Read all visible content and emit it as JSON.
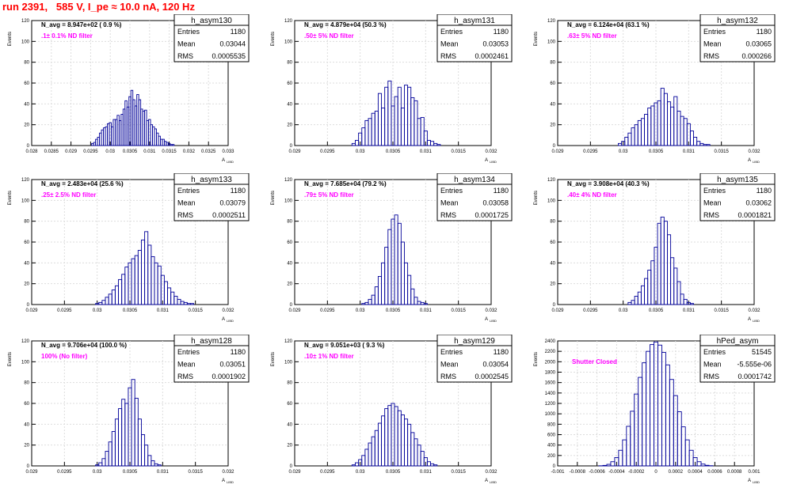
{
  "page_title": "run 2391,   585 V, I_pe ≈ 10.0 nA, 120 Hz",
  "colors": {
    "title": "#ff0000",
    "histogram": "#000099",
    "label": "#ff00ff",
    "grid": "#dddddd",
    "axis": "#000000"
  },
  "y_axis_title": "Events",
  "x_axis_title": "A",
  "x_axis_subscript": "LIBD",
  "stat_labels": {
    "entries": "Entries",
    "mean": "Mean",
    "rms": "RMS"
  },
  "chart_data": [
    {
      "type": "bar",
      "histogram_style": "step",
      "title": "h_asym130",
      "header": "N_avg = 8.947e+02 ( 0.9 %)",
      "filter_label": ".1± 0.1% ND filter",
      "stats": {
        "entries": "1180",
        "mean": "0.03044",
        "rms": "0.0005535"
      },
      "xlim": [
        0.028,
        0.033
      ],
      "ylim": [
        0,
        120
      ],
      "grid": true,
      "xticks": [
        "0.028",
        "0.0285",
        "0.029",
        "0.0295",
        "0.03",
        "0.0305",
        "0.031",
        "0.0315",
        "0.032",
        "0.0325",
        "0.033"
      ],
      "yticks": [
        "0",
        "20",
        "40",
        "60",
        "80",
        "100",
        "120"
      ],
      "x": [
        0.02955,
        0.0296,
        0.02965,
        0.0297,
        0.02975,
        0.0298,
        0.02985,
        0.0299,
        0.02995,
        0.03,
        0.03005,
        0.0301,
        0.03015,
        0.0302,
        0.03025,
        0.0303,
        0.03035,
        0.0304,
        0.03045,
        0.0305,
        0.03055,
        0.0306,
        0.03065,
        0.0307,
        0.03075,
        0.0308,
        0.03085,
        0.0309,
        0.03095,
        0.031,
        0.03105,
        0.0311,
        0.03115,
        0.0312,
        0.03125,
        0.0313,
        0.03135,
        0.0314,
        0.03145,
        0.0315,
        0.03155,
        0.0316
      ],
      "values": [
        2,
        3,
        6,
        8,
        12,
        15,
        17,
        18,
        21,
        22,
        18,
        25,
        25,
        29,
        24,
        30,
        35,
        43,
        37,
        47,
        53,
        44,
        38,
        49,
        44,
        35,
        33,
        34,
        24,
        25,
        20,
        18,
        16,
        12,
        9,
        6,
        6,
        4,
        3,
        2,
        1,
        1
      ]
    },
    {
      "type": "bar",
      "histogram_style": "step",
      "title": "h_asym131",
      "header": "N_avg = 4.879e+04 (50.3 %)",
      "filter_label": ".50± 5% ND filter",
      "stats": {
        "entries": "1180",
        "mean": "0.03053",
        "rms": "0.0002461"
      },
      "xlim": [
        0.029,
        0.032
      ],
      "ylim": [
        0,
        120
      ],
      "grid": true,
      "xticks": [
        "0.029",
        "0.0295",
        "0.03",
        "0.0305",
        "0.031",
        "0.0315",
        "0.032"
      ],
      "yticks": [
        "0",
        "20",
        "40",
        "60",
        "80",
        "100",
        "120"
      ],
      "x": [
        0.0299,
        0.02995,
        0.03,
        0.03005,
        0.0301,
        0.03015,
        0.0302,
        0.03025,
        0.0303,
        0.03035,
        0.0304,
        0.03045,
        0.0305,
        0.03055,
        0.0306,
        0.03065,
        0.0307,
        0.03075,
        0.0308,
        0.03085,
        0.0309,
        0.03095,
        0.031,
        0.03105,
        0.0311,
        0.03115,
        0.0312
      ],
      "values": [
        2,
        5,
        12,
        17,
        24,
        26,
        31,
        33,
        50,
        36,
        56,
        62,
        38,
        47,
        56,
        36,
        58,
        56,
        46,
        43,
        26,
        27,
        14,
        5,
        4,
        2,
        1
      ]
    },
    {
      "type": "bar",
      "histogram_style": "step",
      "title": "h_asym132",
      "header": "N_avg = 6.124e+04 (63.1 %)",
      "filter_label": ".63± 5% ND filter",
      "stats": {
        "entries": "1180",
        "mean": "0.03065",
        "rms": "0.000266"
      },
      "xlim": [
        0.029,
        0.032
      ],
      "ylim": [
        0,
        120
      ],
      "grid": true,
      "xticks": [
        "0.029",
        "0.0295",
        "0.03",
        "0.0305",
        "0.031",
        "0.0315",
        "0.032"
      ],
      "yticks": [
        "0",
        "20",
        "40",
        "60",
        "80",
        "100",
        "120"
      ],
      "x": [
        0.02995,
        0.03,
        0.03005,
        0.0301,
        0.03015,
        0.0302,
        0.03025,
        0.0303,
        0.03035,
        0.0304,
        0.03045,
        0.0305,
        0.03055,
        0.0306,
        0.03065,
        0.0307,
        0.03075,
        0.0308,
        0.03085,
        0.0309,
        0.03095,
        0.031,
        0.03105,
        0.0311,
        0.03115,
        0.0312,
        0.03125,
        0.0313
      ],
      "values": [
        2,
        4,
        8,
        12,
        17,
        20,
        24,
        26,
        30,
        36,
        38,
        41,
        43,
        55,
        50,
        42,
        37,
        47,
        33,
        28,
        26,
        21,
        14,
        8,
        4,
        2,
        1,
        1
      ]
    },
    {
      "type": "bar",
      "histogram_style": "step",
      "title": "h_asym133",
      "header": "N_avg = 2.483e+04 (25.6 %)",
      "filter_label": ".25± 2.5% ND filter",
      "stats": {
        "entries": "1180",
        "mean": "0.03079",
        "rms": "0.0002511"
      },
      "xlim": [
        0.029,
        0.032
      ],
      "ylim": [
        0,
        120
      ],
      "grid": true,
      "xticks": [
        "0.029",
        "0.0295",
        "0.03",
        "0.0305",
        "0.031",
        "0.0315",
        "0.032"
      ],
      "yticks": [
        "0",
        "20",
        "40",
        "60",
        "80",
        "100",
        "120"
      ],
      "x": [
        0.03,
        0.03005,
        0.0301,
        0.03015,
        0.0302,
        0.03025,
        0.0303,
        0.03035,
        0.0304,
        0.03045,
        0.0305,
        0.03055,
        0.0306,
        0.03065,
        0.0307,
        0.03075,
        0.0308,
        0.03085,
        0.0309,
        0.03095,
        0.031,
        0.03105,
        0.0311,
        0.03115,
        0.0312,
        0.03125,
        0.0313,
        0.03135,
        0.0314,
        0.03145
      ],
      "values": [
        1,
        2,
        4,
        7,
        10,
        14,
        18,
        24,
        29,
        36,
        40,
        44,
        47,
        52,
        62,
        70,
        57,
        46,
        40,
        37,
        28,
        22,
        16,
        12,
        8,
        5,
        3,
        2,
        1,
        1
      ]
    },
    {
      "type": "bar",
      "histogram_style": "step",
      "title": "h_asym134",
      "header": "N_avg = 7.685e+04 (79.2 %)",
      "filter_label": ".79± 5% ND filter",
      "stats": {
        "entries": "1180",
        "mean": "0.03058",
        "rms": "0.0001725"
      },
      "xlim": [
        0.029,
        0.032
      ],
      "ylim": [
        0,
        120
      ],
      "grid": true,
      "xticks": [
        "0.029",
        "0.0295",
        "0.03",
        "0.0305",
        "0.031",
        "0.0315",
        "0.032"
      ],
      "yticks": [
        "0",
        "20",
        "40",
        "60",
        "80",
        "100",
        "120"
      ],
      "x": [
        0.03005,
        0.0301,
        0.03015,
        0.0302,
        0.03025,
        0.0303,
        0.03035,
        0.0304,
        0.03045,
        0.0305,
        0.03055,
        0.0306,
        0.03065,
        0.0307,
        0.03075,
        0.0308,
        0.03085,
        0.0309,
        0.03095,
        0.031
      ],
      "values": [
        1,
        2,
        5,
        9,
        17,
        27,
        40,
        55,
        72,
        82,
        86,
        78,
        60,
        40,
        28,
        15,
        7,
        3,
        2,
        1
      ]
    },
    {
      "type": "bar",
      "histogram_style": "step",
      "title": "h_asym135",
      "header": "N_avg = 3.908e+04 (40.3 %)",
      "filter_label": ".40± 4% ND filter",
      "stats": {
        "entries": "1180",
        "mean": "0.03062",
        "rms": "0.0001821"
      },
      "xlim": [
        0.029,
        0.032
      ],
      "ylim": [
        0,
        120
      ],
      "grid": true,
      "xticks": [
        "0.029",
        "0.0295",
        "0.03",
        "0.0305",
        "0.031",
        "0.0315",
        "0.032"
      ],
      "yticks": [
        "0",
        "20",
        "40",
        "60",
        "80",
        "100",
        "120"
      ],
      "x": [
        0.0301,
        0.03015,
        0.0302,
        0.03025,
        0.0303,
        0.03035,
        0.0304,
        0.03045,
        0.0305,
        0.03055,
        0.0306,
        0.03065,
        0.0307,
        0.03075,
        0.0308,
        0.03085,
        0.0309,
        0.03095,
        0.031,
        0.03105
      ],
      "values": [
        2,
        4,
        8,
        12,
        18,
        25,
        33,
        42,
        55,
        78,
        84,
        80,
        67,
        45,
        35,
        22,
        10,
        5,
        2,
        1
      ]
    },
    {
      "type": "bar",
      "histogram_style": "step",
      "title": "h_asym128",
      "header": "N_avg = 9.706e+04 (100.0 %)",
      "filter_label": "100% (No filter)",
      "stats": {
        "entries": "1180",
        "mean": "0.03051",
        "rms": "0.0001902"
      },
      "xlim": [
        0.029,
        0.032
      ],
      "ylim": [
        0,
        120
      ],
      "grid": true,
      "xticks": [
        "0.029",
        "0.0295",
        "0.03",
        "0.0305",
        "0.031",
        "0.0315",
        "0.032"
      ],
      "yticks": [
        "0",
        "20",
        "40",
        "60",
        "80",
        "100",
        "120"
      ],
      "x": [
        0.03,
        0.03005,
        0.0301,
        0.03015,
        0.0302,
        0.03025,
        0.0303,
        0.03035,
        0.0304,
        0.03045,
        0.0305,
        0.03055,
        0.0306,
        0.03065,
        0.0307,
        0.03075,
        0.0308,
        0.03085,
        0.0309,
        0.03095
      ],
      "values": [
        1,
        3,
        7,
        14,
        23,
        33,
        45,
        55,
        64,
        60,
        75,
        83,
        65,
        45,
        30,
        20,
        10,
        5,
        2,
        1
      ]
    },
    {
      "type": "bar",
      "histogram_style": "step",
      "title": "h_asym129",
      "header": "N_avg = 9.051e+03 ( 9.3 %)",
      "filter_label": ".10± 1% ND filter",
      "stats": {
        "entries": "1180",
        "mean": "0.03054",
        "rms": "0.0002545"
      },
      "xlim": [
        0.029,
        0.032
      ],
      "ylim": [
        0,
        120
      ],
      "grid": true,
      "xticks": [
        "0.029",
        "0.0295",
        "0.03",
        "0.0305",
        "0.031",
        "0.0315",
        "0.032"
      ],
      "yticks": [
        "0",
        "20",
        "40",
        "60",
        "80",
        "100",
        "120"
      ],
      "x": [
        0.0299,
        0.02995,
        0.03,
        0.03005,
        0.0301,
        0.03015,
        0.0302,
        0.03025,
        0.0303,
        0.03035,
        0.0304,
        0.03045,
        0.0305,
        0.03055,
        0.0306,
        0.03065,
        0.0307,
        0.03075,
        0.0308,
        0.03085,
        0.0309,
        0.03095,
        0.031,
        0.03105,
        0.0311,
        0.03115
      ],
      "values": [
        1,
        3,
        6,
        10,
        16,
        22,
        28,
        34,
        41,
        48,
        55,
        58,
        60,
        57,
        53,
        49,
        45,
        40,
        32,
        26,
        20,
        14,
        8,
        4,
        2,
        1
      ]
    },
    {
      "type": "bar",
      "histogram_style": "step",
      "title": "hPed_asym",
      "header": "",
      "filter_label": "Shutter Closed",
      "stats": {
        "entries": "51545",
        "mean": "-5.555e-06",
        "rms": "0.0001742"
      },
      "xlim": [
        -0.001,
        0.001
      ],
      "ylim": [
        0,
        2400
      ],
      "grid": true,
      "xticks": [
        "-0.001",
        "-0.0008",
        "-0.0006",
        "-0.0004",
        "-0.0002",
        "0",
        "0.0002",
        "0.0004",
        "0.0006",
        "0.0008",
        "0.001"
      ],
      "yticks": [
        "0",
        "200",
        "400",
        "600",
        "800",
        "1000",
        "1200",
        "1400",
        "1600",
        "1800",
        "2000",
        "2200",
        "2400"
      ],
      "x": [
        -0.00056,
        -0.00052,
        -0.00048,
        -0.00044,
        -0.0004,
        -0.00036,
        -0.00032,
        -0.00028,
        -0.00024,
        -0.0002,
        -0.00016,
        -0.00012,
        -8e-05,
        -4e-05,
        0,
        4e-05,
        8e-05,
        0.00012,
        0.00016,
        0.0002,
        0.00024,
        0.00028,
        0.00032,
        0.00036,
        0.0004,
        0.00044,
        0.00048,
        0.00052,
        0.00056
      ],
      "values": [
        3,
        10,
        30,
        80,
        160,
        300,
        500,
        760,
        1050,
        1380,
        1700,
        1980,
        2200,
        2330,
        2380,
        2320,
        2180,
        1940,
        1660,
        1350,
        1040,
        750,
        500,
        300,
        160,
        80,
        35,
        12,
        4
      ]
    }
  ]
}
